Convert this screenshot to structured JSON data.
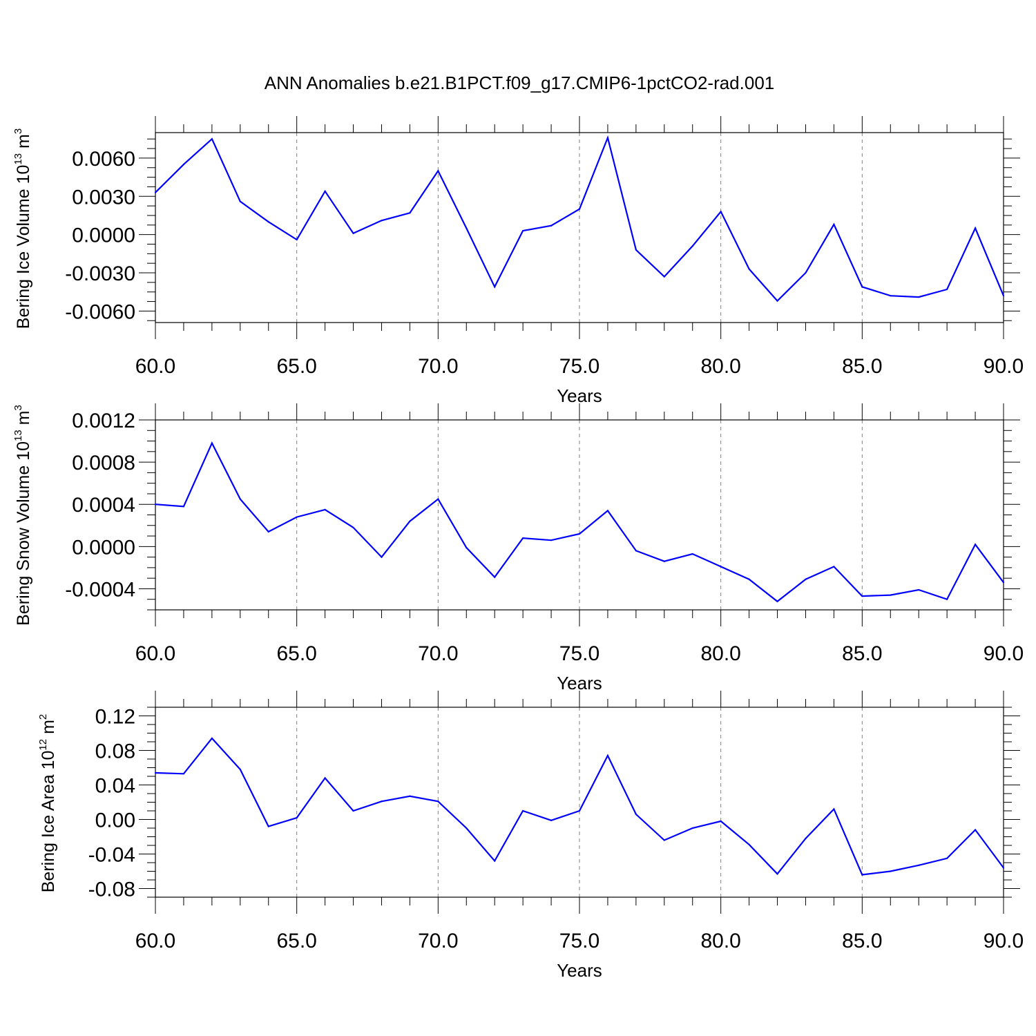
{
  "title": "ANN Anomalies b.e21.B1PCT.f09_g17.CMIP6-1pctCO2-rad.001",
  "colors": {
    "series": "#0000ff",
    "axis": "#000000",
    "grid": "#7f7f7f"
  },
  "chart_data": [
    {
      "type": "line",
      "ylabel": {
        "text": "Bering Ice Volume 10",
        "sup1": "13",
        "unit": " m",
        "sup2": "3"
      },
      "xlabel": "Years",
      "xlim": [
        60,
        90
      ],
      "ylim": [
        -0.0069,
        0.008
      ],
      "yticks": [
        -0.006,
        -0.003,
        0.0,
        0.003,
        0.006
      ],
      "ytick_labels": [
        "-0.0060",
        "-0.0030",
        "0.0000",
        "0.0030",
        "0.0060"
      ],
      "yminor_step": 0.00075,
      "xticks": [
        60,
        65,
        70,
        75,
        80,
        85,
        90
      ],
      "xtick_labels": [
        "60.0",
        "65.0",
        "70.0",
        "75.0",
        "80.0",
        "85.0",
        "90.0"
      ],
      "grid": "vertical dashed at major x ticks",
      "x": [
        60,
        61,
        62,
        63,
        64,
        65,
        66,
        67,
        68,
        69,
        70,
        71,
        72,
        73,
        74,
        75,
        76,
        77,
        78,
        79,
        80,
        81,
        82,
        83,
        84,
        85,
        86,
        87,
        88,
        89,
        90
      ],
      "values": [
        0.0033,
        0.0055,
        0.0075,
        0.0026,
        0.001,
        -0.0004,
        0.0034,
        0.0001,
        0.0011,
        0.0017,
        0.005,
        0.0005,
        -0.0041,
        0.0003,
        0.0007,
        0.002,
        0.0076,
        -0.0012,
        -0.0033,
        -0.0009,
        0.0018,
        -0.0027,
        -0.0052,
        -0.003,
        0.0008,
        -0.0041,
        -0.0048,
        -0.0049,
        -0.0043,
        0.0005,
        -0.0048
      ]
    },
    {
      "type": "line",
      "ylabel": {
        "text": "Bering Snow Volume 10",
        "sup1": "13",
        "unit": " m",
        "sup2": "3"
      },
      "xlabel": "Years",
      "xlim": [
        60,
        90
      ],
      "ylim": [
        -0.0006,
        0.0012
      ],
      "yticks": [
        -0.0004,
        0.0,
        0.0004,
        0.0008,
        0.0012
      ],
      "ytick_labels": [
        "-0.0004",
        "0.0000",
        "0.0004",
        "0.0008",
        "0.0012"
      ],
      "yminor_step": 0.0001,
      "xticks": [
        60,
        65,
        70,
        75,
        80,
        85,
        90
      ],
      "xtick_labels": [
        "60.0",
        "65.0",
        "70.0",
        "75.0",
        "80.0",
        "85.0",
        "90.0"
      ],
      "grid": "vertical dashed at major x ticks",
      "x": [
        60,
        61,
        62,
        63,
        64,
        65,
        66,
        67,
        68,
        69,
        70,
        71,
        72,
        73,
        74,
        75,
        76,
        77,
        78,
        79,
        80,
        81,
        82,
        83,
        84,
        85,
        86,
        87,
        88,
        89,
        90
      ],
      "values": [
        0.0004,
        0.00038,
        0.00098,
        0.00045,
        0.00014,
        0.00028,
        0.00035,
        0.00018,
        -0.0001,
        0.00024,
        0.00045,
        -1e-05,
        -0.00029,
        8e-05,
        6e-05,
        0.00012,
        0.00034,
        -4e-05,
        -0.00014,
        -7e-05,
        -0.00019,
        -0.00031,
        -0.00052,
        -0.00031,
        -0.00019,
        -0.00047,
        -0.00046,
        -0.00041,
        -0.0005,
        2e-05,
        -0.00034
      ]
    },
    {
      "type": "line",
      "ylabel": {
        "text": "Bering Ice Area 10",
        "sup1": "12",
        "unit": " m",
        "sup2": "2"
      },
      "xlabel": "Years",
      "xlim": [
        60,
        90
      ],
      "ylim": [
        -0.09,
        0.13
      ],
      "yticks": [
        -0.08,
        -0.04,
        0.0,
        0.04,
        0.08,
        0.12
      ],
      "ytick_labels": [
        "-0.08",
        "-0.04",
        "0.00",
        "0.04",
        "0.08",
        "0.12"
      ],
      "yminor_step": 0.01,
      "xticks": [
        60,
        65,
        70,
        75,
        80,
        85,
        90
      ],
      "xtick_labels": [
        "60.0",
        "65.0",
        "70.0",
        "75.0",
        "80.0",
        "85.0",
        "90.0"
      ],
      "grid": "vertical dashed at major x ticks",
      "x": [
        60,
        61,
        62,
        63,
        64,
        65,
        66,
        67,
        68,
        69,
        70,
        71,
        72,
        73,
        74,
        75,
        76,
        77,
        78,
        79,
        80,
        81,
        82,
        83,
        84,
        85,
        86,
        87,
        88,
        89,
        90
      ],
      "values": [
        0.054,
        0.053,
        0.094,
        0.058,
        -0.008,
        0.002,
        0.048,
        0.01,
        0.021,
        0.027,
        0.021,
        -0.01,
        -0.048,
        0.01,
        -0.001,
        0.01,
        0.074,
        0.006,
        -0.024,
        -0.01,
        -0.002,
        -0.029,
        -0.063,
        -0.022,
        0.012,
        -0.064,
        -0.06,
        -0.053,
        -0.045,
        -0.012,
        -0.056
      ]
    }
  ]
}
